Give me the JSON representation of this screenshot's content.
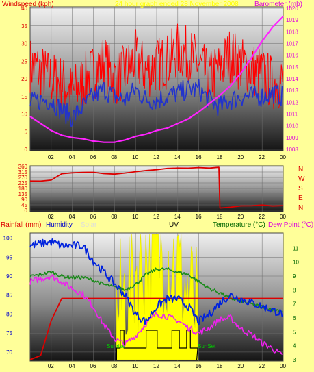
{
  "panel_top": {
    "left_label": "Windspeed (kph)",
    "center_label": "24 hour graph ended 28 November 2008",
    "right_label": "Barometer (mb)"
  },
  "panel_bottom": {
    "labels": {
      "rainfall": "Rainfall (mm)",
      "humidity": "Humidity",
      "solar": "Solar",
      "uv": "UV",
      "temperature": "Temperature (°C)",
      "dew_point": "Dew Point (°C)"
    },
    "annotations": {
      "sunrise": "Sunrise",
      "sunset": "SunSet"
    }
  },
  "colors": {
    "page_bg": "#FFFF99",
    "wind_gust": "#FF0000",
    "wind_avg": "#2233CC",
    "barometer": "#FF22FF",
    "wind_dir": "#DD0000",
    "humidity": "#0022DD",
    "rainfall": "#DD0000",
    "temperature": "#1A8A1A",
    "dew_point": "#EE22EE",
    "solar": "#FFFF00",
    "uv": "#000000",
    "axis_left": "#DD0000",
    "axis_right": "#DD00DD",
    "axis_temp": "#006600",
    "axis_humidity": "#0000CC"
  },
  "chart_data": [
    {
      "type": "line",
      "name": "wind_and_pressure",
      "x_tick_labels": [
        "02",
        "04",
        "06",
        "08",
        "10",
        "12",
        "14",
        "16",
        "18",
        "20",
        "22",
        "00"
      ],
      "x": [
        0,
        1,
        2,
        3,
        4,
        5,
        6,
        7,
        8,
        9,
        10,
        11,
        12,
        13,
        14,
        15,
        16,
        17,
        18,
        19,
        20,
        21,
        22,
        23,
        24
      ],
      "left_axis": {
        "label": "Windspeed (kph)",
        "range": [
          0,
          40
        ],
        "ticks": [
          "0",
          "5",
          "10",
          "15",
          "20",
          "25",
          "30",
          "35",
          "40"
        ]
      },
      "right_axis": {
        "label": "Barometer (mb)",
        "range": [
          1008,
          1020
        ],
        "ticks": [
          "1008",
          "1009",
          "1010",
          "1011",
          "1012",
          "1013",
          "1014",
          "1015",
          "1016",
          "1017",
          "1018",
          "1019",
          "1020"
        ]
      },
      "series": [
        {
          "name": "gust",
          "axis": "left",
          "values": [
            24,
            22,
            20,
            19,
            16,
            19,
            22,
            25,
            20,
            22,
            26,
            22,
            24,
            25,
            28,
            27,
            24,
            20,
            23,
            27,
            24,
            23,
            21,
            19,
            19
          ]
        },
        {
          "name": "average",
          "axis": "left",
          "values": [
            13,
            14,
            14,
            11,
            9,
            12,
            15,
            17,
            15,
            14,
            17,
            14,
            14,
            15,
            16,
            17,
            17,
            14,
            12,
            14,
            15,
            15,
            15,
            16,
            15
          ]
        },
        {
          "name": "barometer",
          "axis": "right",
          "values": [
            1010.8,
            1010.2,
            1009.6,
            1009.2,
            1009.0,
            1008.9,
            1008.7,
            1008.6,
            1008.6,
            1008.8,
            1009.1,
            1009.3,
            1009.6,
            1009.8,
            1010.2,
            1010.6,
            1011.2,
            1011.9,
            1012.6,
            1013.4,
            1014.5,
            1015.8,
            1017.2,
            1018.4,
            1019.3
          ]
        }
      ]
    },
    {
      "type": "line",
      "name": "wind_direction",
      "x": [
        0,
        1,
        2,
        3,
        4,
        5,
        6,
        7,
        8,
        9,
        10,
        11,
        12,
        13,
        14,
        15,
        16,
        17,
        17.9,
        18.0,
        19,
        20,
        21,
        22,
        23,
        24
      ],
      "left_axis": {
        "range": [
          0,
          360
        ],
        "ticks": [
          "0",
          "45",
          "90",
          "135",
          "180",
          "225",
          "270",
          "315",
          "360"
        ]
      },
      "right_axis_labels": [
        "N",
        "W",
        "S",
        "E",
        "N"
      ],
      "series": [
        {
          "name": "direction",
          "values": [
            240,
            240,
            250,
            300,
            305,
            310,
            310,
            305,
            300,
            305,
            315,
            330,
            335,
            345,
            345,
            345,
            350,
            350,
            350,
            15,
            25,
            35,
            40,
            40,
            38,
            40
          ]
        }
      ]
    },
    {
      "type": "line",
      "name": "rain_humidity_solar_uv_temperature",
      "x": [
        0,
        1,
        2,
        3,
        4,
        5,
        6,
        7,
        8,
        9,
        10,
        11,
        12,
        13,
        14,
        15,
        16,
        17,
        18,
        19,
        20,
        21,
        22,
        23,
        24
      ],
      "humidity_axis": {
        "range": [
          68,
          101
        ],
        "ticks": [
          "70",
          "75",
          "80",
          "85",
          "90",
          "95",
          "100"
        ]
      },
      "temperature_axis": {
        "range": [
          3,
          12
        ],
        "ticks": [
          "3",
          "4",
          "5",
          "6",
          "7",
          "8",
          "9",
          "10",
          "11"
        ]
      },
      "series": [
        {
          "name": "humidity",
          "axis": "humidity",
          "values": [
            98,
            98.5,
            99,
            98,
            98,
            98,
            94,
            91,
            88,
            85,
            80,
            78,
            82,
            84,
            84,
            82,
            78,
            80,
            83,
            85,
            84,
            83,
            82,
            81,
            80
          ]
        },
        {
          "name": "temperature",
          "axis": "temperature",
          "values": [
            9.0,
            9.1,
            9.3,
            9.0,
            8.9,
            8.9,
            8.7,
            8.4,
            8.2,
            8.0,
            8.4,
            9.1,
            9.5,
            9.5,
            9.3,
            9.1,
            8.6,
            8.1,
            7.8,
            7.4,
            7.2,
            7.0,
            6.8,
            6.6,
            6.5
          ]
        },
        {
          "name": "dew_point",
          "axis": "temperature",
          "values": [
            8.6,
            8.8,
            9.0,
            8.6,
            8.1,
            7.7,
            6.8,
            5.5,
            4.5,
            4.1,
            4.7,
            5.6,
            6.3,
            6.1,
            5.8,
            5.3,
            4.9,
            5.3,
            5.9,
            6.0,
            5.2,
            4.8,
            4.2,
            3.8,
            3.2
          ]
        },
        {
          "name": "rainfall",
          "axis": "temperature",
          "values": [
            3.0,
            3.3,
            5.8,
            7.4,
            7.4,
            7.4,
            7.4,
            7.4,
            7.4,
            7.4,
            7.4,
            7.4,
            7.4,
            7.4,
            7.4,
            7.4,
            7.4,
            7.4,
            7.4,
            7.4,
            7.4,
            7.4,
            7.4,
            7.4,
            7.4
          ]
        }
      ]
    }
  ]
}
